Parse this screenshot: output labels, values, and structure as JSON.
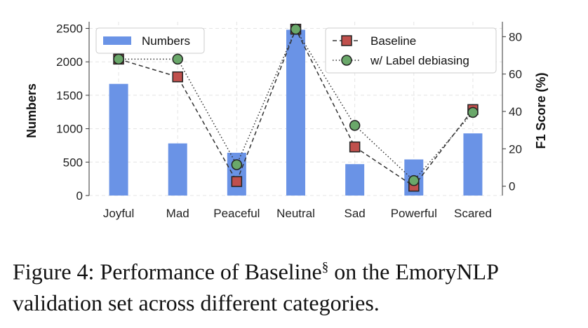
{
  "chart_data": {
    "type": "bar",
    "categories": [
      "Joyful",
      "Mad",
      "Peaceful",
      "Neutral",
      "Sad",
      "Powerful",
      "Scared"
    ],
    "ylabel": "Numbers",
    "ylabel_right": "F1 Score (%)",
    "ylim": [
      0,
      2600
    ],
    "ylim_right": [
      -5,
      88
    ],
    "y_ticks": [
      0,
      500,
      1000,
      1500,
      2000,
      2500
    ],
    "y_ticks_right": [
      0,
      20,
      40,
      60,
      80
    ],
    "grid": true,
    "series": [
      {
        "name": "Numbers",
        "type": "bar",
        "axis": "left",
        "color": "#6a93e6",
        "values": [
          1670,
          780,
          640,
          2480,
          470,
          540,
          930
        ]
      },
      {
        "name": "Baseline",
        "type": "line",
        "axis": "right",
        "marker": "square",
        "line_style": "dashed",
        "color": "#c0504d",
        "values": [
          68,
          58.5,
          2.5,
          84,
          21,
          0,
          41
        ]
      },
      {
        "name": "w/ Label debiasing",
        "type": "line",
        "axis": "right",
        "marker": "circle",
        "line_style": "dotted",
        "color": "#6aa86a",
        "values": [
          68,
          68,
          11.5,
          84,
          32.5,
          3,
          39.5
        ]
      }
    ],
    "legend_left_position": "top-left",
    "legend_right_position": "top-right"
  },
  "caption": {
    "prefix": "Figure 4: Performance of Baseline",
    "sup": "§",
    "suffix": " on the EmoryNLP validation set across different categories."
  }
}
